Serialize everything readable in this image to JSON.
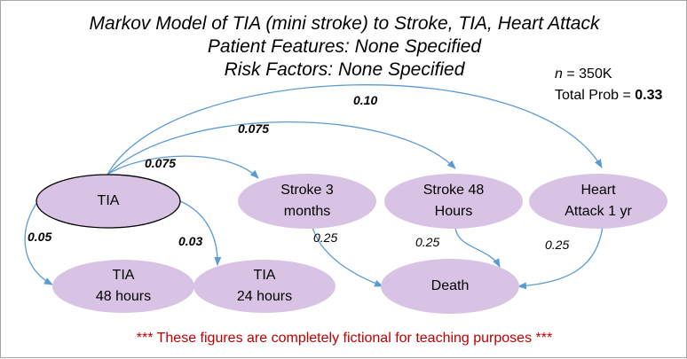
{
  "title": {
    "line1": "Markov Model of TIA (mini stroke) to Stroke, TIA, Heart Attack",
    "line2": "Patient Features: None Specified",
    "line3": "Risk Factors: None Specified"
  },
  "stats": {
    "n_label": "n",
    "n_value": " = 350K",
    "total_label": "Total Prob = ",
    "total_value": "0.33"
  },
  "nodes": {
    "tia": "TIA",
    "stroke3_l1": "Stroke 3",
    "stroke3_l2": "months",
    "stroke48_l1": "Stroke 48",
    "stroke48_l2": "Hours",
    "heart_l1": "Heart",
    "heart_l2": "Attack 1 yr",
    "tia48_l1": "TIA",
    "tia48_l2": "48 hours",
    "tia24_l1": "TIA",
    "tia24_l2": "24 hours",
    "death": "Death"
  },
  "probabilities": {
    "to_heart": "0.10",
    "to_stroke48": "0.075",
    "to_stroke3": "0.075",
    "to_tia48": "0.05",
    "to_tia24": "0.03",
    "stroke3_death": "0.25",
    "stroke48_death": "0.25",
    "heart_death": "0.25"
  },
  "footer": "*** These figures are completely fictional for teaching purposes ***",
  "colors": {
    "node_fill": "#d9c3e5",
    "edge": "#5b9bd5",
    "footer": "#c00000"
  }
}
